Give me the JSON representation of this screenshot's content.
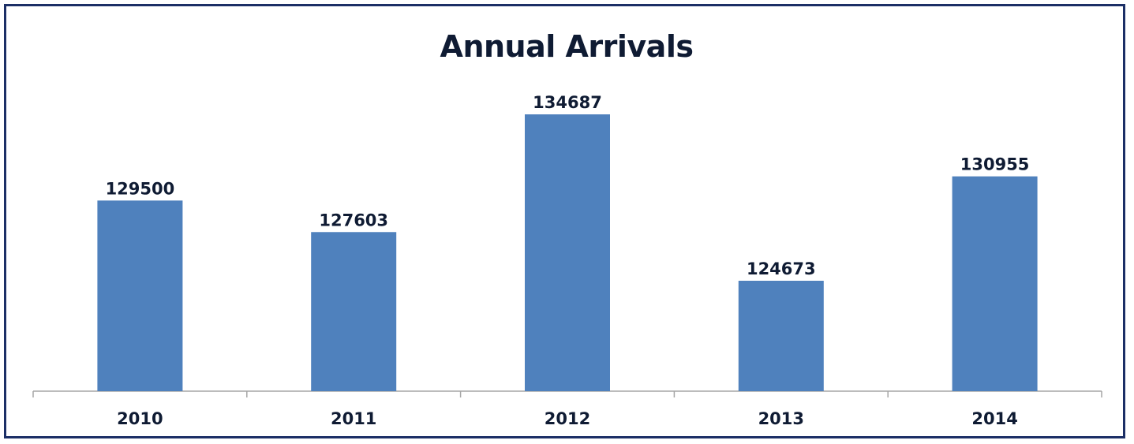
{
  "chart_data": {
    "type": "bar",
    "title": "Annual Arrivals",
    "categories": [
      "2010",
      "2011",
      "2012",
      "2013",
      "2014"
    ],
    "values": [
      129500,
      127603,
      134687,
      124673,
      130955
    ],
    "xlabel": "",
    "ylabel": "",
    "grid": false,
    "legend": "none",
    "bar_color": "#4f81bd",
    "frame_color": "#1c2f66",
    "text_color": "#0f1b33"
  }
}
